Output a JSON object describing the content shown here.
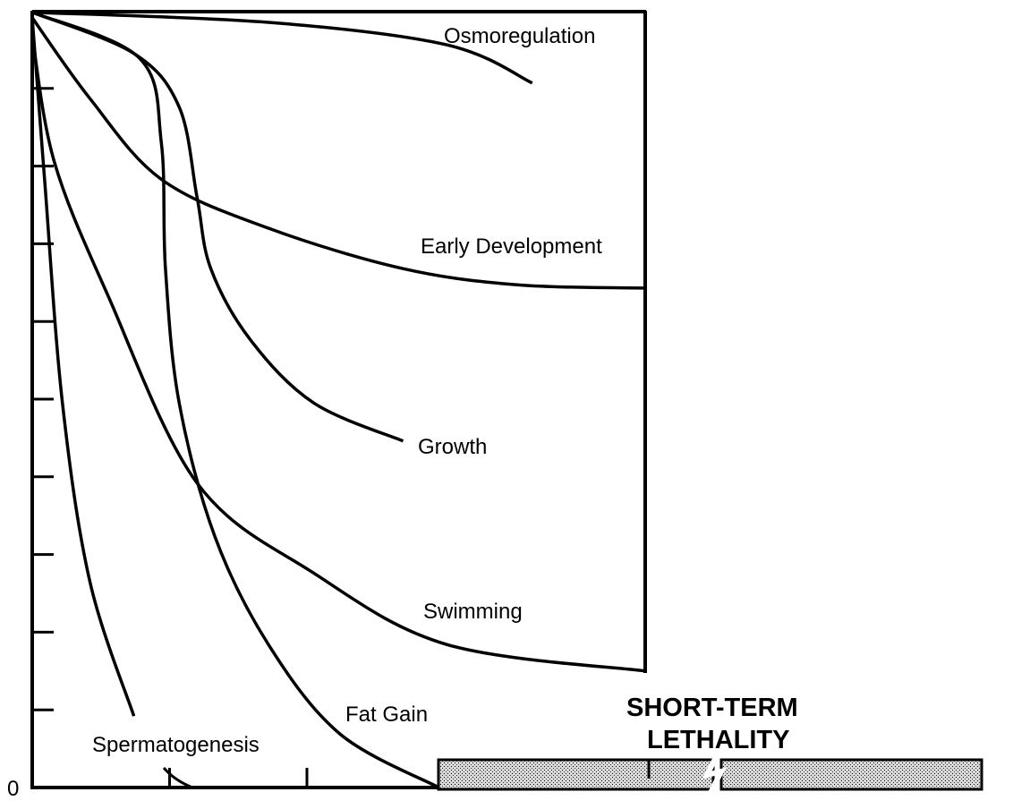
{
  "chart_data": {
    "type": "line",
    "title": "",
    "xlabel": "",
    "ylabel": "",
    "ylim": [
      0,
      10
    ],
    "xlim": [
      0,
      4.46
    ],
    "y_tick_labels": [
      "0"
    ],
    "grid": false,
    "legend": "none (inline labels)",
    "series": [
      {
        "name": "Osmoregulation",
        "points": [
          [
            0,
            9.98
          ],
          [
            1.72,
            9.85
          ],
          [
            3.02,
            9.56
          ],
          [
            3.64,
            9.07
          ]
        ]
      },
      {
        "name": "Early Development",
        "points": [
          [
            0,
            9.91
          ],
          [
            0.42,
            8.87
          ],
          [
            0.94,
            7.83
          ],
          [
            1.72,
            7.2
          ],
          [
            2.7,
            6.68
          ],
          [
            3.54,
            6.47
          ],
          [
            4.46,
            6.43
          ]
        ]
      },
      {
        "name": "Growth",
        "points": [
          [
            0,
            9.98
          ],
          [
            0.74,
            9.45
          ],
          [
            1.07,
            8.76
          ],
          [
            1.2,
            7.6
          ],
          [
            1.3,
            6.68
          ],
          [
            1.59,
            5.76
          ],
          [
            2.05,
            4.95
          ],
          [
            2.7,
            4.46
          ]
        ]
      },
      {
        "name": "Fat Gain",
        "points": [
          [
            0,
            9.98
          ],
          [
            0.78,
            9.39
          ],
          [
            0.94,
            8.3
          ],
          [
            0.97,
            6.68
          ],
          [
            1.07,
            4.95
          ],
          [
            1.33,
            3.23
          ],
          [
            1.72,
            1.84
          ],
          [
            2.24,
            0.69
          ],
          [
            2.96,
            0
          ]
        ]
      },
      {
        "name": "Swimming",
        "points": [
          [
            0,
            9.68
          ],
          [
            0.16,
            8.06
          ],
          [
            0.55,
            6.34
          ],
          [
            1.2,
            3.92
          ],
          [
            2.05,
            2.76
          ],
          [
            3.02,
            1.84
          ],
          [
            4.46,
            1.5
          ]
        ]
      },
      {
        "name": "Spermatogenesis",
        "points": [
          [
            0,
            9.91
          ],
          [
            0.09,
            7.83
          ],
          [
            0.22,
            4.95
          ],
          [
            0.42,
            2.65
          ],
          [
            0.74,
            0.92
          ]
        ]
      }
    ],
    "annotations": {
      "lethality_line1": "SHORT-TERM",
      "lethality_line2": "LETHALITY"
    }
  }
}
